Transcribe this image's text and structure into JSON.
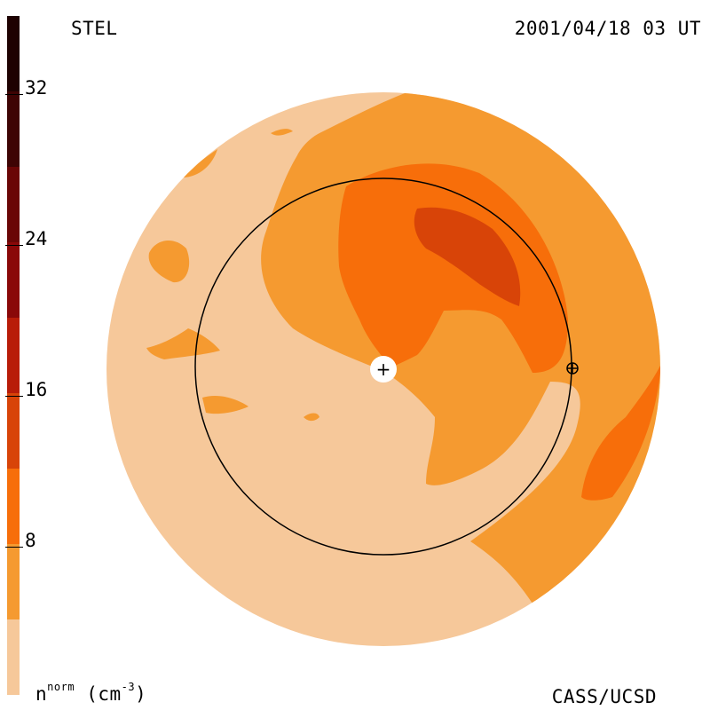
{
  "header": {
    "source": "STEL",
    "datetime": "2001/04/18 03 UT"
  },
  "footer": {
    "credit": "CASS/UCSD",
    "unit_main": "n",
    "unit_sup": "norm",
    "unit_paren": "(cm",
    "unit_exp": "-3",
    "unit_close": ")"
  },
  "colorbar": {
    "min": 0,
    "max": 36,
    "ticks": [
      {
        "value": 32,
        "label": "32"
      },
      {
        "value": 24,
        "label": "24"
      },
      {
        "value": 16,
        "label": "16"
      },
      {
        "value": 8,
        "label": "8"
      }
    ],
    "bands": [
      {
        "from": 0,
        "to": 4,
        "color": "#f6c89a"
      },
      {
        "from": 4,
        "to": 8,
        "color": "#f59a30"
      },
      {
        "from": 8,
        "to": 12,
        "color": "#f76e0a"
      },
      {
        "from": 12,
        "to": 16,
        "color": "#d84408"
      },
      {
        "from": 16,
        "to": 20,
        "color": "#b81c08"
      },
      {
        "from": 20,
        "to": 24,
        "color": "#8a0808"
      },
      {
        "from": 24,
        "to": 28,
        "color": "#6a0606"
      },
      {
        "from": 28,
        "to": 32,
        "color": "#3e0404"
      },
      {
        "from": 32,
        "to": 36,
        "color": "#1e0202"
      }
    ]
  },
  "map": {
    "background_color": "#ffffff",
    "disk_color": "#f6c89a",
    "markers": [
      {
        "name": "sun-center",
        "symbol": "+"
      },
      {
        "name": "earth",
        "symbol": "⊕"
      }
    ]
  }
}
